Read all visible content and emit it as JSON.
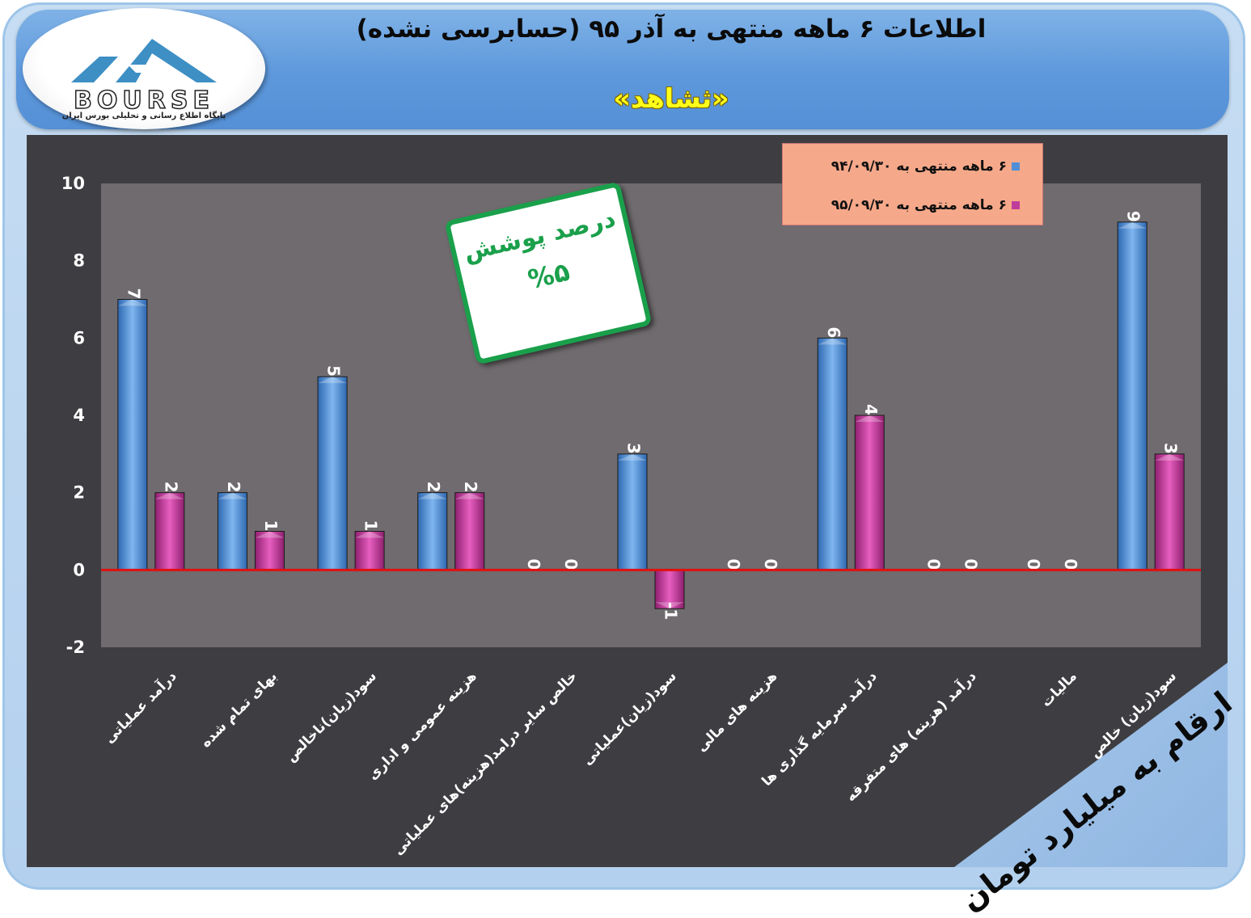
{
  "header": {
    "title": "اطلاعات ۶ ماهه منتهی به آذر ۹۵ (حسابرسی نشده)",
    "symbol": "«ثشاهد»"
  },
  "logo": {
    "name": "BOURSE",
    "subtitle": "پایگاه اطلاع رسانی و تحلیلی بورس ایران"
  },
  "coverage_box": {
    "label": "درصد پوشش",
    "value": "%۵"
  },
  "unit_note": "ارقام به میلیارد تومان",
  "colors": {
    "series1": "#4f8fd8",
    "series2": "#c03c9a",
    "zero_line": "#e01010",
    "plot_bg": "#6f6b6e",
    "outer_bg": "#3e3e42",
    "coverage_green": "#1aa04b",
    "title_yellow": "#ffff1a"
  },
  "chart_data": {
    "type": "bar",
    "categories": [
      "درآمد عملیاتی",
      "بهای تمام شده",
      "سود(زیان)ناخالص",
      "هزینه عمومی و اداری",
      "خالص سایر درامد(هزینه)های عملیاتی",
      "سود(زیان)عملیاتی",
      "هزینه های مالی",
      "درآمد سرمایه گذاری ها",
      "درآمد (هزینه) های متفرقه",
      "مالیات",
      "سود(زیان) خالص"
    ],
    "series": [
      {
        "name": "۶ ماهه منتهی به ۹۴/۰۹/۳۰",
        "values": [
          7,
          2,
          5,
          2,
          0,
          3,
          0,
          6,
          0,
          0,
          9
        ],
        "labels": [
          "7",
          "2",
          "5",
          "2",
          "0",
          "3",
          "0",
          "6",
          "0",
          "0",
          "9"
        ]
      },
      {
        "name": "۶ ماهه منتهی به ۹۵/۰۹/۳۰",
        "values": [
          2,
          1,
          1,
          2,
          0,
          -1,
          0,
          4,
          0,
          0,
          3
        ],
        "labels": [
          "2",
          "1",
          "1",
          "2",
          "0",
          "-1",
          "0",
          "4",
          "0",
          "0",
          "3"
        ]
      }
    ],
    "yticks": [
      "10",
      "8",
      "6",
      "4",
      "2",
      "0",
      "-2"
    ],
    "ylim": [
      -2,
      10
    ],
    "grid": false,
    "legend_position": "top-right"
  }
}
